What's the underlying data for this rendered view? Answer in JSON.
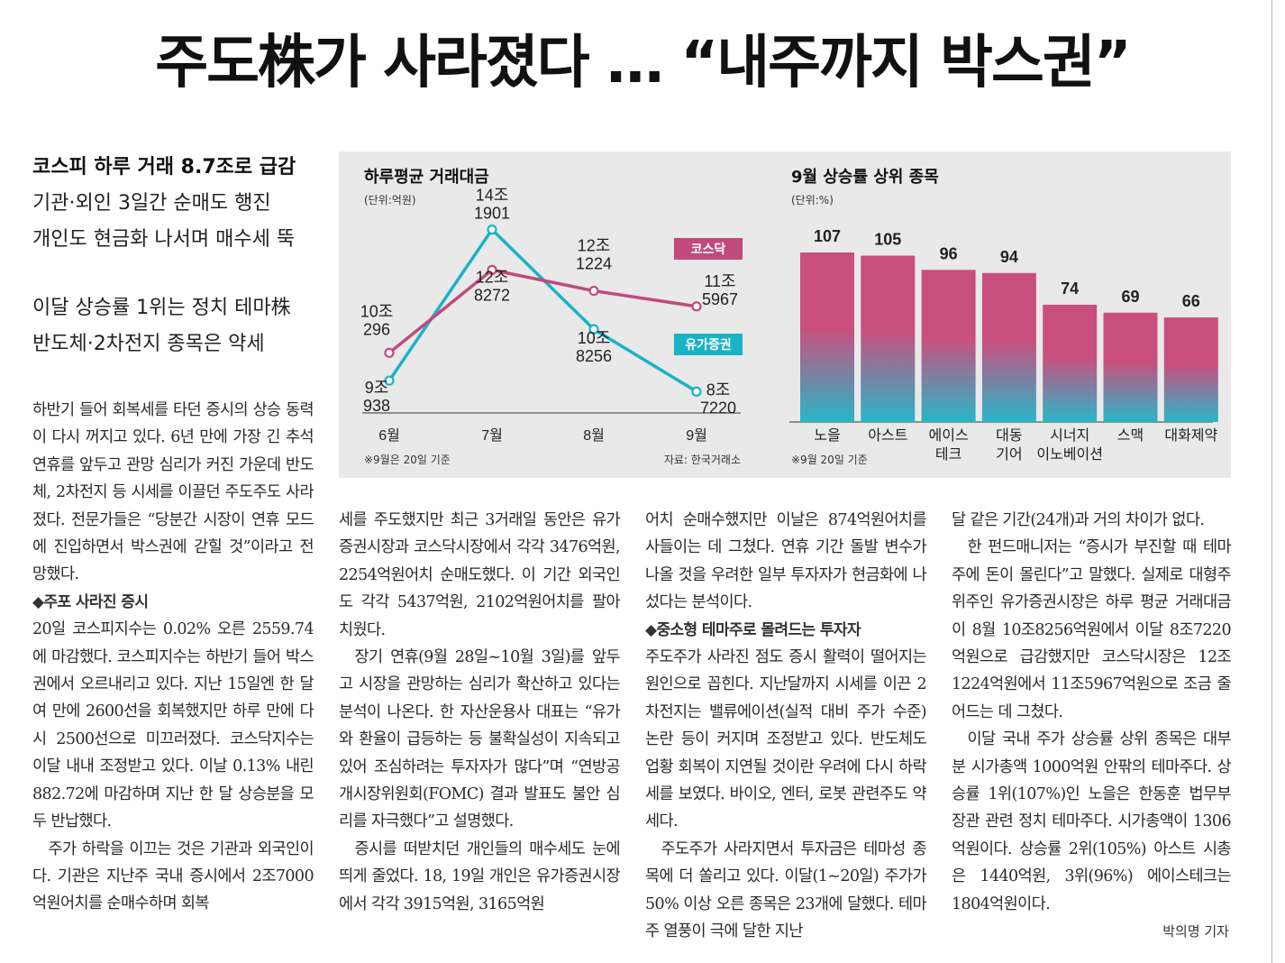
{
  "headline": "주도株가 사라졌다 … “내주까지 박스권”",
  "subheads": {
    "line1": "코스피 하루 거래 8.7조로 급감",
    "line2": "기관·외인 3일간 순매도 행진",
    "line3": "개인도 현금화 나서며 매수세 뚝",
    "line4": "이달 상승률 1위는 정치 테마株",
    "line5": "반도체·2차전지 종목은 약세"
  },
  "columns": {
    "c1": [
      "하반기 들어 회복세를 타던 증시의 상승 동력이 다시 꺼지고 있다. 6년 만에 가장 긴 추석 연휴를 앞두고 관망 심리가 커진 가운데 반도체, 2차전지 등 시세를 이끌던 주도주도 사라졌다. 전문가들은 “당분간 시장이 연휴 모드에 진입하면서 박스권에 갇힐 것”이라고 전망했다.",
      "◆주포 사라진 증시",
      "20일 코스피지수는 0.02% 오른 2559.74에 마감했다. 코스피지수는 하반기 들어 박스권에서 오르내리고 있다. 지난 15일엔 한 달여 만에 2600선을 회복했지만 하루 만에 다시 2500선으로 미끄러졌다. 코스닥지수는 이달 내내 조정받고 있다. 이날 0.13% 내린 882.72에 마감하며 지난 한 달 상승분을 모두 반납했다.",
      "주가 하락을 이끄는 것은 기관과 외국인이다. 기관은 지난주 국내 증시에서 2조7000억원어치를 순매수하며 회복"
    ],
    "c2": [
      "세를 주도했지만 최근 3거래일 동안은 유가증권시장과 코스닥시장에서 각각 3476억원, 2254억원어치 순매도했다. 이 기간 외국인도 각각 5437억원, 2102억원어치를 팔아 치웠다.",
      "장기 연휴(9월 28일~10월 3일)를 앞두고 시장을 관망하는 심리가 확산하고 있다는 분석이 나온다. 한 자산운용사 대표는 “유가와 환율이 급등하는 등 불확실성이 지속되고 있어 조심하려는 투자자가 많다”며 “연방공개시장위원회(FOMC) 결과 발표도 불안 심리를 자극했다”고 설명했다.",
      "증시를 떠받치던 개인들의 매수세도 눈에 띄게 줄었다. 18, 19일 개인은 유가증권시장에서 각각 3915억원, 3165억원"
    ],
    "c3": [
      "어치 순매수했지만 이날은 874억원어치를 사들이는 데 그쳤다. 연휴 기간 돌발 변수가 나올 것을 우려한 일부 투자자가 현금화에 나섰다는 분석이다.",
      "◆중소형 테마주로 몰려드는 투자자",
      "주도주가 사라진 점도 증시 활력이 떨어지는 원인으로 꼽힌다. 지난달까지 시세를 이끈 2차전지는 밸류에이션(실적 대비 주가 수준) 논란 등이 커지며 조정받고 있다. 반도체도 업황 회복이 지연될 것이란 우려에 다시 하락세를 보였다. 바이오, 엔터, 로봇 관련주도 약세다.",
      "주도주가 사라지면서 투자금은 테마성 종목에 더 쏠리고 있다. 이달(1~20일) 주가가 50% 이상 오른 종목은 23개에 달했다. 테마주 열풍이 극에 달한 지난"
    ],
    "c4": [
      "달 같은 기간(24개)과 거의 차이가 없다.",
      "한 펀드매니저는 “증시가 부진할 때 테마주에 돈이 몰린다”고 말했다. 실제로 대형주 위주인 유가증권시장은 하루 평균 거래대금이 8월 10조8256억원에서 이달 8조7220억원으로 급감했지만 코스닥시장은 12조1224억원에서 11조5967억원으로 조금 줄어드는 데 그쳤다.",
      "이달 국내 주가 상승률 상위 종목은 대부분 시가총액 1000억원 안팎의 테마주다. 상승률 1위(107%)인 노을은 한동훈 법무부 장관 관련 정치 테마주다. 시가총액이 1306억원이다. 상승률 2위(105%) 아스트 시총은 1440억원, 3위(96%) 에이스테크는 1804억원이다."
    ]
  },
  "byline": "박의명 기자",
  "chart_data": [
    {
      "type": "line",
      "title": "하루평균 거래대금",
      "unit": "(단위:억원)",
      "categories": [
        "6월",
        "7월",
        "8월",
        "9월"
      ],
      "series": [
        {
          "name": "유가증권",
          "values": [
            90938,
            141901,
            108256,
            87220
          ],
          "labels": [
            [
              "9조",
              "938"
            ],
            [
              "14조",
              "1901"
            ],
            [
              "10조",
              "8256"
            ],
            [
              "8조",
              "7220"
            ]
          ],
          "color": "#1ab3c6"
        },
        {
          "name": "코스닥",
          "values": [
            100296,
            128272,
            121224,
            115967
          ],
          "labels": [
            [
              "10조",
              "296"
            ],
            [
              "12조",
              "8272"
            ],
            [
              "12조",
              "1224"
            ],
            [
              "11조",
              "5967"
            ]
          ],
          "color": "#c04a7c"
        }
      ],
      "note": "※9월은 20일 기준",
      "source": "자료: 한국거래소"
    },
    {
      "type": "bar",
      "title": "9월 상승률 상위 종목",
      "unit": "(단위:%)",
      "categories": [
        [
          "노을"
        ],
        [
          "아스트"
        ],
        [
          "에이스",
          "테크"
        ],
        [
          "대동",
          "기어"
        ],
        [
          "시너지",
          "이노베이션"
        ],
        [
          "스맥"
        ],
        [
          "대화제약"
        ]
      ],
      "values": [
        107,
        105,
        96,
        94,
        74,
        69,
        66
      ],
      "note": "※9월 20일 기준",
      "colors": {
        "top": "#c94f7f",
        "bottom": "#28b6c8"
      }
    }
  ]
}
